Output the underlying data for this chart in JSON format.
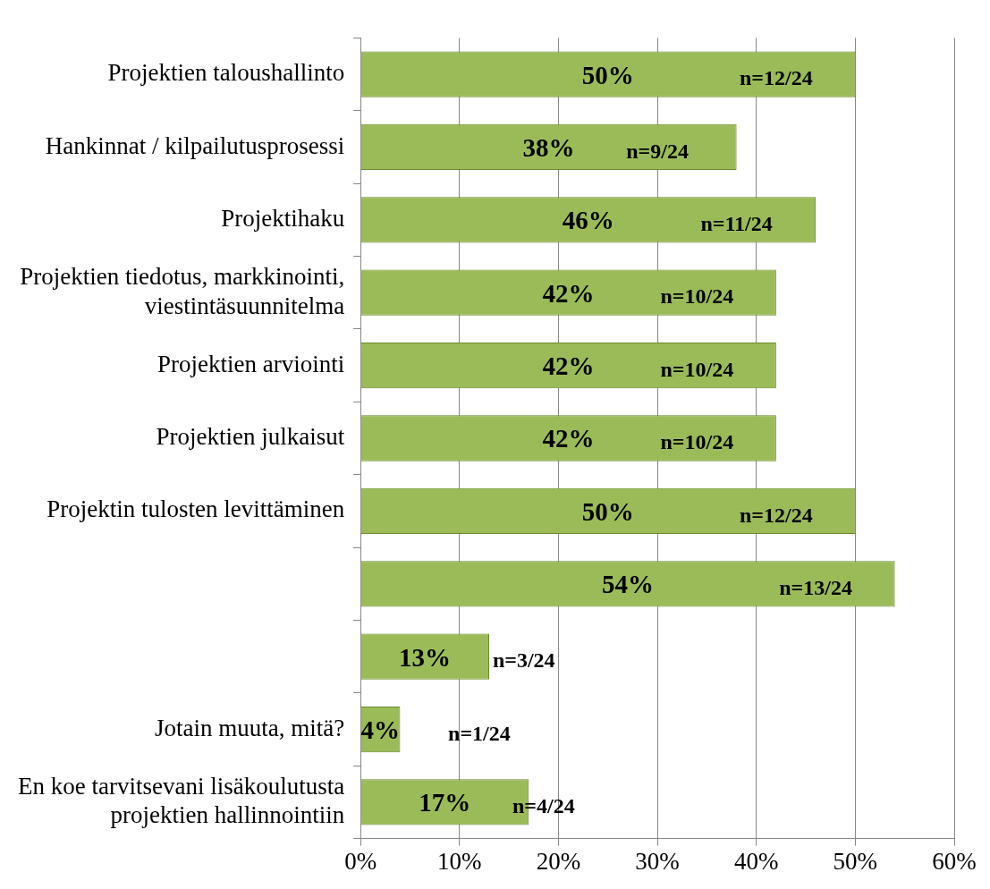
{
  "chart_data": {
    "type": "bar",
    "orientation": "horizontal",
    "categories": [
      "Projektien taloushallinto",
      "Hankinnat / kilpailutusprosessi",
      "Projektihaku",
      "Projektien tiedotus, markkinointi, viestintäsuunnitelma",
      "Projektien arviointi",
      "Projektien julkaisut",
      "Projektin tulosten levittäminen",
      null,
      null,
      "Jotain muuta, mitä?",
      "En koe tarvitsevani lisäkoulutusta projektien hallinnointiin"
    ],
    "values": [
      50,
      38,
      46,
      42,
      42,
      42,
      50,
      54,
      13,
      4,
      17
    ],
    "value_labels": [
      "50%",
      "38%",
      "46%",
      "42%",
      "42%",
      "42%",
      "50%",
      "54%",
      "13%",
      "4%",
      "17%"
    ],
    "color": "#9bbb59",
    "xlim": [
      0,
      60
    ],
    "xticks": [
      {
        "value": 0,
        "label": "0%"
      },
      {
        "value": 10,
        "label": "10%"
      },
      {
        "value": 20,
        "label": "20%"
      },
      {
        "value": 30,
        "label": "30%"
      },
      {
        "value": 40,
        "label": "40%"
      },
      {
        "value": 50,
        "label": "50%"
      },
      {
        "value": 60,
        "label": "60%"
      }
    ],
    "grid": "x",
    "legend": false,
    "annotations": [
      "n=12/24",
      "n=9/24",
      "n=11/24",
      "n=10/24",
      "n=10/24",
      "n=10/24",
      "n=12/24",
      "n=13/24",
      "n=3/24",
      "n=1/24",
      "n=4/24"
    ]
  }
}
